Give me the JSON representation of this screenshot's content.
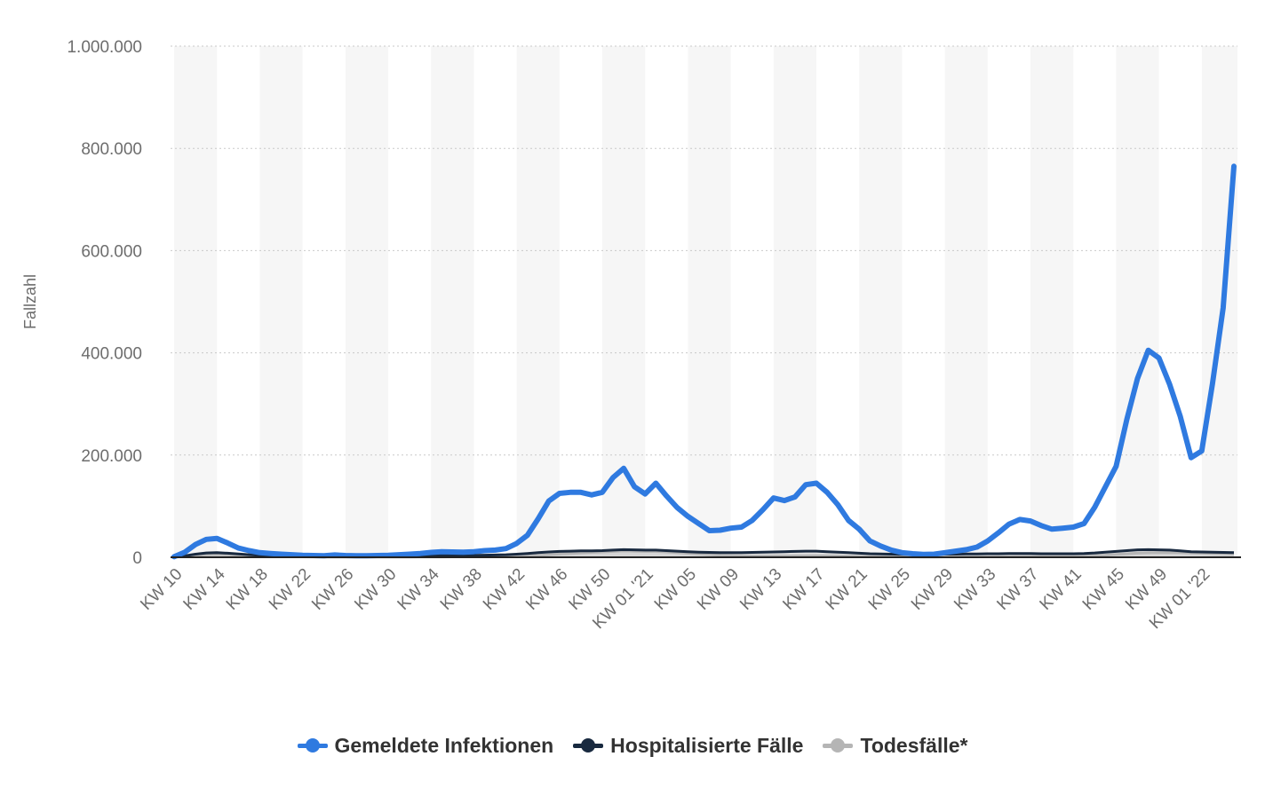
{
  "chart_data": {
    "type": "line",
    "title": "",
    "xlabel": "",
    "ylabel": "Fallzahl",
    "ylim": [
      0,
      1000000
    ],
    "y_ticks": [
      0,
      200000,
      400000,
      600000,
      800000,
      1000000
    ],
    "y_tick_labels": [
      "0",
      "200.000",
      "400.000",
      "600.000",
      "800.000",
      "1.000.000"
    ],
    "x_tick_labels": [
      "KW 10",
      "KW 14",
      "KW 18",
      "KW 22",
      "KW 26",
      "KW 30",
      "KW 34",
      "KW 38",
      "KW 42",
      "KW 46",
      "KW 50",
      "KW 01 '21",
      "KW 05",
      "KW 09",
      "KW 13",
      "KW 17",
      "KW 21",
      "KW 25",
      "KW 29",
      "KW 33",
      "KW 37",
      "KW 41",
      "KW 45",
      "KW 49",
      "KW 01 '22"
    ],
    "grid": true,
    "legend_position": "bottom",
    "series": [
      {
        "name": "Gemeldete Infektionen",
        "color": "#2f7ae0",
        "values": [
          1000,
          10000,
          25000,
          35000,
          37000,
          28000,
          18000,
          13000,
          9000,
          7500,
          6000,
          5000,
          4000,
          3500,
          3000,
          4500,
          3500,
          3000,
          3000,
          3500,
          4000,
          5000,
          6000,
          7500,
          9500,
          11000,
          10500,
          10000,
          11000,
          13000,
          14000,
          17000,
          27000,
          43000,
          75000,
          110000,
          125000,
          127000,
          127000,
          122000,
          127000,
          156000,
          174000,
          138000,
          124000,
          145000,
          120000,
          97000,
          80000,
          66000,
          52000,
          53000,
          57000,
          59000,
          72000,
          93000,
          116000,
          111000,
          118000,
          142000,
          145000,
          127000,
          103000,
          72000,
          55000,
          32000,
          22000,
          14000,
          9000,
          7000,
          5500,
          6000,
          9000,
          12000,
          15000,
          20000,
          32000,
          48000,
          65000,
          74000,
          71000,
          62000,
          55000,
          57000,
          59000,
          66000,
          98000,
          138000,
          178000,
          270000,
          350000,
          405000,
          390000,
          338000,
          275000,
          195000,
          208000,
          340000,
          488000,
          765000
        ]
      },
      {
        "name": "Hospitalisierte Fälle",
        "color": "#18293f",
        "values": [
          800,
          3000,
          6000,
          8500,
          9000,
          8000,
          6500,
          5000,
          4000,
          3500,
          3000,
          2500,
          2200,
          2000,
          2000,
          2200,
          2000,
          2000,
          2000,
          2200,
          2500,
          2800,
          3000,
          3200,
          3500,
          3800,
          3800,
          3800,
          4000,
          4200,
          4500,
          5000,
          6000,
          7500,
          9000,
          10500,
          11500,
          12000,
          12500,
          12500,
          13000,
          14000,
          15000,
          14500,
          14000,
          14000,
          13000,
          12000,
          11000,
          10000,
          9500,
          9000,
          9000,
          9000,
          9500,
          10000,
          10500,
          11000,
          11500,
          12000,
          12000,
          11000,
          10000,
          9000,
          8000,
          7000,
          6500,
          6000,
          5500,
          5500,
          5500,
          5500,
          6000,
          6000,
          6500,
          6500,
          7000,
          7000,
          7500,
          7500,
          7500,
          7000,
          7000,
          7000,
          7000,
          7500,
          8500,
          10000,
          11500,
          13000,
          14500,
          15000,
          14500,
          14000,
          12500,
          11000,
          10500,
          10000,
          9500,
          9000
        ]
      },
      {
        "name": "Todesfälle*",
        "color": "#b5b5b5",
        "values": [
          200,
          1500,
          3500,
          5000,
          5500,
          5000,
          4200,
          3200,
          2300,
          1700,
          1300,
          1000,
          800,
          700,
          600,
          500,
          500,
          450,
          450,
          450,
          500,
          550,
          600,
          650,
          700,
          750,
          800,
          800,
          850,
          900,
          1000,
          1200,
          1800,
          2600,
          3600,
          4800,
          6200,
          7500,
          8500,
          9500,
          10500,
          11500,
          12500,
          12000,
          11500,
          11500,
          10500,
          9200,
          7800,
          6500,
          5200,
          4200,
          3500,
          3000,
          2800,
          2700,
          2700,
          2800,
          3000,
          3200,
          3300,
          3100,
          2800,
          2400,
          2000,
          1600,
          1300,
          1000,
          800,
          700,
          600,
          600,
          650,
          700,
          800,
          950,
          1100,
          1300,
          1500,
          1700,
          1900,
          2000,
          2100,
          2200,
          2400,
          2700,
          3300,
          4200,
          5500,
          6800,
          8000,
          8800,
          9200,
          9300,
          9000,
          8500,
          8000,
          7500,
          7000,
          6800
        ]
      }
    ]
  }
}
